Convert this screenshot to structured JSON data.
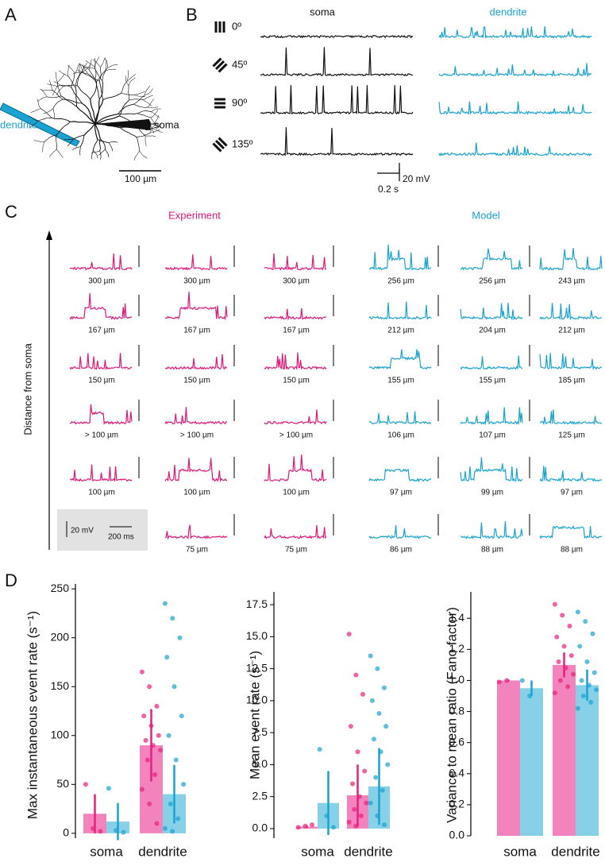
{
  "panels": {
    "a": "A",
    "b": "B",
    "c": "C",
    "d": "D"
  },
  "panel_a": {
    "dendrite_label": "dendrite",
    "soma_label": "soma",
    "scale": "100 µm"
  },
  "panel_b": {
    "soma": "soma",
    "dendrite": "dendrite",
    "angles": [
      "0º",
      "45º",
      "90º",
      "135º"
    ],
    "scale_v": "20 mV",
    "scale_t": "0.2 s"
  },
  "panel_c": {
    "experiment": "Experiment",
    "model": "Model",
    "axis": "Distance from soma",
    "scale_v": "20 mV",
    "scale_t": "200 ms",
    "experiment_labels": [
      [
        "300 µm",
        "300 µm",
        "300 µm"
      ],
      [
        "167 µm",
        "167 µm",
        "167 µm"
      ],
      [
        "150 µm",
        "150 µm",
        "150 µm"
      ],
      [
        "> 100 µm",
        "> 100 µm",
        "> 100 µm"
      ],
      [
        "100 µm",
        "100 µm",
        "100 µm"
      ],
      [
        "75 µm",
        "75 µm"
      ]
    ],
    "model_labels": [
      [
        "256 µm",
        "256 µm",
        "243 µm"
      ],
      [
        "212 µm",
        "204 µm",
        "212 µm"
      ],
      [
        "155 µm",
        "155 µm",
        "185 µm"
      ],
      [
        "106 µm",
        "107 µm",
        "125 µm"
      ],
      [
        "97 µm",
        "99 µm",
        "97 µm"
      ],
      [
        "86 µm",
        "88 µm",
        "88 µm"
      ]
    ]
  },
  "chart_data": [
    {
      "type": "bar",
      "ylabel": "Max instantaneous event rate (s⁻¹)",
      "categories": [
        "soma",
        "dendrite"
      ],
      "series": [
        {
          "color": "#f383bc",
          "point_color": "#e8207f",
          "values": [
            20,
            90
          ],
          "errors": [
            20,
            37
          ],
          "points": [
            [
              50,
              5,
              2
            ],
            [
              165,
              150,
              130,
              120,
              110,
              100,
              95,
              90,
              85,
              75,
              60,
              45,
              30,
              10
            ]
          ]
        },
        {
          "color": "#86d0e8",
          "point_color": "#1aa3d1",
          "values": [
            12,
            40
          ],
          "errors": [
            19,
            30
          ],
          "points": [
            [
              46,
              3,
              1
            ],
            [
              235,
              220,
              200,
              180,
              150,
              120,
              100,
              75,
              50,
              30,
              15,
              5,
              2
            ]
          ]
        }
      ],
      "ylim": [
        -5,
        255
      ],
      "yticks": [
        0,
        50,
        100,
        150,
        200,
        250
      ]
    },
    {
      "type": "bar",
      "ylabel": "Mean event rate (s⁻¹)",
      "categories": [
        "soma",
        "dendrite"
      ],
      "series": [
        {
          "color": "#f383bc",
          "point_color": "#e8207f",
          "values": [
            0.15,
            2.6
          ],
          "errors": [
            0.1,
            2.4
          ],
          "points": [
            [
              0.1,
              0.2,
              0.3
            ],
            [
              15.2,
              12,
              10.5,
              8,
              6,
              4.5,
              3.5,
              2.5,
              2,
              1.5,
              1,
              0.5,
              0.2
            ]
          ]
        },
        {
          "color": "#86d0e8",
          "point_color": "#1aa3d1",
          "values": [
            2,
            3.3
          ],
          "errors": [
            2.5,
            3
          ],
          "points": [
            [
              6.2,
              1,
              0.1
            ],
            [
              13.5,
              12.5,
              11,
              10,
              9,
              8,
              7,
              6,
              5,
              4,
              3,
              2,
              1,
              0.3
            ]
          ]
        }
      ],
      "ylim": [
        -0.75,
        18.5
      ],
      "yticks": [
        {
          "value": 0,
          "label": "0.0"
        },
        2.5,
        {
          "value": 5,
          "label": "5.0"
        },
        7.5,
        {
          "value": 10,
          "label": "10.0"
        },
        12.5,
        {
          "value": 15,
          "label": "15.0"
        },
        17.5
      ]
    },
    {
      "type": "bar",
      "ylabel": "Variance to mean ratio (Fano factor)",
      "categories": [
        "soma",
        "dendrite"
      ],
      "series": [
        {
          "color": "#f383bc",
          "point_color": "#e8207f",
          "values": [
            1,
            1.1
          ],
          "errors": [
            0.005,
            0.08
          ],
          "points": [
            [
              0.99,
              1
            ],
            [
              1.49,
              1.42,
              1.35,
              1.28,
              1.22,
              1.16,
              1.12,
              1.08,
              1.04,
              1,
              0.96,
              0.92
            ]
          ]
        },
        {
          "color": "#86d0e8",
          "point_color": "#1aa3d1",
          "values": [
            0.95,
            0.97
          ],
          "errors": [
            0.05,
            0.1
          ],
          "points": [
            [
              1,
              0.9
            ],
            [
              1.44,
              1.38,
              1.3,
              1.22,
              1.12,
              1.05,
              1,
              0.97,
              0.94,
              0.9,
              0.86,
              0.82
            ]
          ]
        }
      ],
      "ylim": [
        0,
        1.57
      ],
      "yticks": [
        {
          "value": 0,
          "label": "0.0"
        },
        0.2,
        0.4,
        0.6,
        0.8,
        {
          "value": 1,
          "label": "1.0"
        },
        1.2,
        1.4
      ]
    }
  ]
}
